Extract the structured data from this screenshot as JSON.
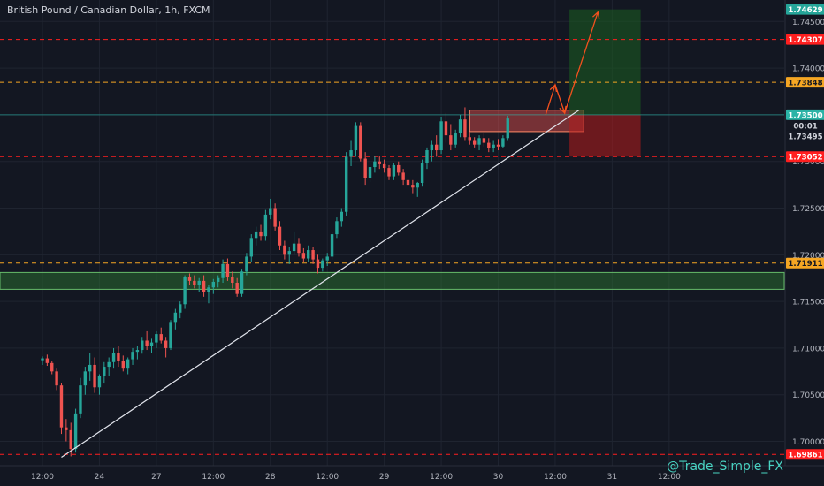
{
  "chart_data": {
    "type": "candlestick",
    "title": "British Pound / Canadian Dollar, 1h, FXCM",
    "watermark": "@Trade_Simple_FX",
    "y_ticks": [
      "1.74500",
      "1.74000",
      "1.73500",
      "1.73000",
      "1.72500",
      "1.72000",
      "1.71500",
      "1.71000",
      "1.70500",
      "1.70000"
    ],
    "y_tick_values": [
      1.745,
      1.74,
      1.735,
      1.73,
      1.725,
      1.72,
      1.715,
      1.71,
      1.705,
      1.7
    ],
    "x_ticks": [
      {
        "label": "12:00",
        "bar": 0
      },
      {
        "label": "24",
        "bar": 12
      },
      {
        "label": "27",
        "bar": 24
      },
      {
        "label": "12:00",
        "bar": 36
      },
      {
        "label": "28",
        "bar": 48
      },
      {
        "label": "12:00",
        "bar": 60
      },
      {
        "label": "29",
        "bar": 72
      },
      {
        "label": "12:00",
        "bar": 84
      },
      {
        "label": "30",
        "bar": 96
      },
      {
        "label": "12:00",
        "bar": 108
      },
      {
        "label": "31",
        "bar": 120
      },
      {
        "label": "12:00",
        "bar": 132
      }
    ],
    "ylim": [
      1.6974,
      1.7473
    ],
    "grid": true,
    "colors": {
      "up": "#26a69a",
      "down": "#ef5350",
      "background": "#131722",
      "grid": "#1f2430",
      "text": "#b2b5be",
      "level": "#ff1f1f",
      "orange": "#f5a623",
      "price": "#2bb3a6",
      "arrow": "#f4511e"
    },
    "levels": [
      {
        "label": "1.74629",
        "value": 1.74629,
        "style": "target",
        "color": "#26a69a"
      },
      {
        "label": "1.74307",
        "value": 1.74307,
        "style": "dashed",
        "color": "#ff1f1f"
      },
      {
        "label": "1.73848",
        "value": 1.73848,
        "style": "dashed",
        "color": "#f5a623"
      },
      {
        "label": "1.73500",
        "value": 1.735,
        "style": "price",
        "color": "#2bb3a6"
      },
      {
        "label": "00:01",
        "value": 1.7338,
        "style": "countdown",
        "color": "#2bb3a6"
      },
      {
        "label": "1.73495",
        "value": 1.73495,
        "style": "cursor",
        "color": "#2bb3a6"
      },
      {
        "label": "1.73052",
        "value": 1.73052,
        "style": "dashed",
        "color": "#ff1f1f"
      },
      {
        "label": "1.71911",
        "value": 1.71911,
        "style": "dashed",
        "color": "#f5a623"
      },
      {
        "label": "1.69861",
        "value": 1.69861,
        "style": "dashed",
        "color": "#ff1f1f"
      }
    ],
    "zones": [
      {
        "name": "support-zone",
        "from": 1.7181,
        "to": 1.7163,
        "color": "#2e7d32"
      },
      {
        "name": "resistance-zone",
        "from": 1.7355,
        "to": 1.7332,
        "start_bar": 90,
        "end_bar": 114,
        "color": "#ef5350"
      },
      {
        "name": "take-profit-zone",
        "from": 1.74629,
        "to": 1.735,
        "start_bar": 111,
        "end_bar": 126,
        "color": "#1b5e20"
      },
      {
        "name": "stop-loss-zone",
        "from": 1.735,
        "to": 1.73052,
        "start_bar": 111,
        "end_bar": 126,
        "color": "#b71c1c"
      }
    ],
    "trendline": {
      "from": {
        "bar": 4,
        "value": 1.6983
      },
      "to": {
        "bar": 113,
        "value": 1.7355
      }
    },
    "projection": [
      {
        "bar": 106,
        "value": 1.735
      },
      {
        "bar": 108,
        "value": 1.7382
      },
      {
        "bar": 110,
        "value": 1.7352
      },
      {
        "bar": 117,
        "value": 1.746
      }
    ],
    "candles": [
      [
        1.7087,
        1.7091,
        1.7082,
        1.7089
      ],
      [
        1.7089,
        1.7093,
        1.7081,
        1.7084
      ],
      [
        1.7084,
        1.7086,
        1.7072,
        1.7075
      ],
      [
        1.7075,
        1.7078,
        1.7055,
        1.706
      ],
      [
        1.706,
        1.7063,
        1.7008,
        1.7015
      ],
      [
        1.7015,
        1.7024,
        1.7,
        1.7012
      ],
      [
        1.7012,
        1.702,
        1.6984,
        1.6992
      ],
      [
        1.6992,
        1.7035,
        1.6988,
        1.703
      ],
      [
        1.703,
        1.7068,
        1.7025,
        1.706
      ],
      [
        1.706,
        1.708,
        1.705,
        1.7075
      ],
      [
        1.7075,
        1.7095,
        1.7065,
        1.7082
      ],
      [
        1.7082,
        1.709,
        1.7052,
        1.7058
      ],
      [
        1.7058,
        1.7072,
        1.705,
        1.707
      ],
      [
        1.707,
        1.7085,
        1.7062,
        1.708
      ],
      [
        1.708,
        1.709,
        1.707,
        1.7085
      ],
      [
        1.7085,
        1.71,
        1.7078,
        1.7095
      ],
      [
        1.7095,
        1.7102,
        1.708,
        1.7086
      ],
      [
        1.7086,
        1.7092,
        1.7075,
        1.7078
      ],
      [
        1.7078,
        1.709,
        1.7072,
        1.7088
      ],
      [
        1.7088,
        1.71,
        1.7082,
        1.7096
      ],
      [
        1.7096,
        1.7102,
        1.7088,
        1.7098
      ],
      [
        1.7098,
        1.7112,
        1.7094,
        1.7108
      ],
      [
        1.7108,
        1.7118,
        1.7098,
        1.7102
      ],
      [
        1.7102,
        1.711,
        1.7095,
        1.7106
      ],
      [
        1.7106,
        1.7118,
        1.71,
        1.7115
      ],
      [
        1.7115,
        1.7122,
        1.7105,
        1.7108
      ],
      [
        1.7108,
        1.7112,
        1.709,
        1.71
      ],
      [
        1.71,
        1.713,
        1.7098,
        1.7128
      ],
      [
        1.7128,
        1.7142,
        1.712,
        1.7138
      ],
      [
        1.7138,
        1.715,
        1.7132,
        1.7147
      ],
      [
        1.7147,
        1.7178,
        1.7142,
        1.7176
      ],
      [
        1.7176,
        1.718,
        1.7168,
        1.7172
      ],
      [
        1.7172,
        1.7178,
        1.7164,
        1.7168
      ],
      [
        1.7168,
        1.7175,
        1.716,
        1.7172
      ],
      [
        1.7172,
        1.7178,
        1.7155,
        1.716
      ],
      [
        1.716,
        1.7168,
        1.7148,
        1.7165
      ],
      [
        1.7165,
        1.7174,
        1.7158,
        1.7171
      ],
      [
        1.7171,
        1.7178,
        1.7165,
        1.7175
      ],
      [
        1.7175,
        1.7195,
        1.717,
        1.719
      ],
      [
        1.719,
        1.7196,
        1.7172,
        1.7176
      ],
      [
        1.7176,
        1.7182,
        1.7164,
        1.717
      ],
      [
        1.717,
        1.7175,
        1.7155,
        1.7158
      ],
      [
        1.7158,
        1.7185,
        1.7155,
        1.7182
      ],
      [
        1.7182,
        1.7202,
        1.7178,
        1.7198
      ],
      [
        1.7198,
        1.7222,
        1.7192,
        1.7218
      ],
      [
        1.7218,
        1.723,
        1.721,
        1.7225
      ],
      [
        1.7225,
        1.7232,
        1.7215,
        1.722
      ],
      [
        1.722,
        1.7248,
        1.7215,
        1.7243
      ],
      [
        1.7243,
        1.726,
        1.7238,
        1.725
      ],
      [
        1.725,
        1.7255,
        1.7226,
        1.723
      ],
      [
        1.723,
        1.7236,
        1.7205,
        1.721
      ],
      [
        1.721,
        1.7215,
        1.7195,
        1.72
      ],
      [
        1.72,
        1.7208,
        1.719,
        1.7204
      ],
      [
        1.7204,
        1.7225,
        1.72,
        1.7212
      ],
      [
        1.7212,
        1.7218,
        1.7198,
        1.7202
      ],
      [
        1.7202,
        1.7207,
        1.7192,
        1.7196
      ],
      [
        1.7196,
        1.721,
        1.7192,
        1.7205
      ],
      [
        1.7205,
        1.7208,
        1.719,
        1.7195
      ],
      [
        1.7195,
        1.72,
        1.718,
        1.7186
      ],
      [
        1.7186,
        1.7196,
        1.7182,
        1.7194
      ],
      [
        1.7194,
        1.7202,
        1.7188,
        1.7198
      ],
      [
        1.7198,
        1.7225,
        1.7195,
        1.7222
      ],
      [
        1.7222,
        1.724,
        1.7218,
        1.7236
      ],
      [
        1.7236,
        1.725,
        1.723,
        1.7246
      ],
      [
        1.7246,
        1.731,
        1.7242,
        1.7305
      ],
      [
        1.7305,
        1.7322,
        1.7295,
        1.7312
      ],
      [
        1.7312,
        1.7342,
        1.7305,
        1.7338
      ],
      [
        1.7338,
        1.7342,
        1.73,
        1.7303
      ],
      [
        1.7303,
        1.731,
        1.7275,
        1.7282
      ],
      [
        1.7282,
        1.7298,
        1.7278,
        1.7294
      ],
      [
        1.7294,
        1.7306,
        1.7288,
        1.73
      ],
      [
        1.73,
        1.7306,
        1.7292,
        1.7297
      ],
      [
        1.7297,
        1.7302,
        1.7288,
        1.7293
      ],
      [
        1.7293,
        1.7296,
        1.728,
        1.7284
      ],
      [
        1.7284,
        1.7298,
        1.728,
        1.7296
      ],
      [
        1.7296,
        1.73,
        1.7285,
        1.7288
      ],
      [
        1.7288,
        1.7292,
        1.7275,
        1.728
      ],
      [
        1.728,
        1.7285,
        1.727,
        1.7275
      ],
      [
        1.7275,
        1.728,
        1.7266,
        1.7272
      ],
      [
        1.7272,
        1.7278,
        1.7262,
        1.7277
      ],
      [
        1.7277,
        1.7302,
        1.7273,
        1.7298
      ],
      [
        1.7298,
        1.7315,
        1.7292,
        1.7312
      ],
      [
        1.7312,
        1.7322,
        1.73,
        1.7318
      ],
      [
        1.7318,
        1.7328,
        1.7305,
        1.7312
      ],
      [
        1.7312,
        1.7348,
        1.7308,
        1.7343
      ],
      [
        1.7343,
        1.7352,
        1.732,
        1.7328
      ],
      [
        1.7328,
        1.734,
        1.7312,
        1.7318
      ],
      [
        1.7318,
        1.7334,
        1.7315,
        1.733
      ],
      [
        1.733,
        1.735,
        1.7326,
        1.7345
      ],
      [
        1.7345,
        1.7358,
        1.7322,
        1.7326
      ],
      [
        1.7326,
        1.7332,
        1.7318,
        1.7322
      ],
      [
        1.7322,
        1.7326,
        1.7315,
        1.7318
      ],
      [
        1.7318,
        1.7328,
        1.7312,
        1.7325
      ],
      [
        1.7325,
        1.733,
        1.7316,
        1.732
      ],
      [
        1.732,
        1.7325,
        1.731,
        1.7314
      ],
      [
        1.7314,
        1.7322,
        1.731,
        1.7318
      ],
      [
        1.7318,
        1.7324,
        1.7312,
        1.7316
      ],
      [
        1.7316,
        1.7328,
        1.7314,
        1.7325
      ],
      [
        1.7325,
        1.7349,
        1.7322,
        1.7346
      ]
    ]
  }
}
